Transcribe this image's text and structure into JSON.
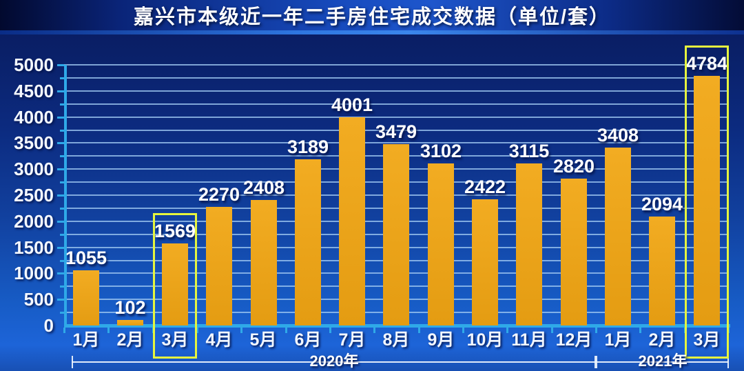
{
  "chart_data": {
    "type": "bar",
    "title": "嘉兴市本级近一年二手房住宅成交数据（单位/套）",
    "unit_label": "套",
    "categories": [
      "1月",
      "2月",
      "3月",
      "4月",
      "5月",
      "6月",
      "7月",
      "8月",
      "9月",
      "10月",
      "11月",
      "12月",
      "1月",
      "2月",
      "3月"
    ],
    "values": [
      1055,
      102,
      1569,
      2270,
      2408,
      3189,
      4001,
      3479,
      3102,
      2422,
      3115,
      2820,
      3408,
      2094,
      4784
    ],
    "ylim": [
      0,
      5000
    ],
    "y_tick_step": 500,
    "gridline_step": 250,
    "grid": true,
    "legend": "none",
    "year_groups": [
      {
        "label": "2020年",
        "from_index": 0,
        "to_index": 11
      },
      {
        "label": "2021年",
        "from_index": 12,
        "to_index": 14
      }
    ],
    "highlighted_indices": [
      2,
      14
    ],
    "colors": {
      "bar": "#E49C12",
      "bar_light": "#F2AC22",
      "axis": "#2FA9E8",
      "gridline": "#9CC6F0",
      "highlight_box": "#E6F53E",
      "value_label": "#FFFFFF",
      "background_top": "#081A5E",
      "background_bottom": "#1D64D8",
      "title_bar": "#174BBE"
    }
  }
}
